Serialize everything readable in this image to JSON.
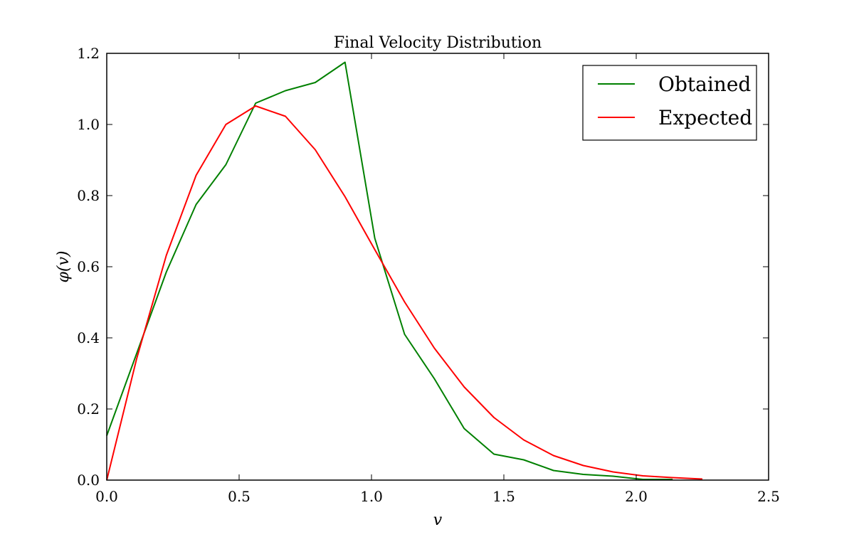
{
  "chart_data": {
    "type": "line",
    "title": "Final Velocity Distribution",
    "xlabel": "v",
    "ylabel": "φ(v)",
    "xlim": [
      0.0,
      2.5
    ],
    "ylim": [
      0.0,
      1.2
    ],
    "xticks": [
      0.0,
      0.5,
      1.0,
      1.5,
      2.0,
      2.5
    ],
    "xtick_labels": [
      "0.0",
      "0.5",
      "1.0",
      "1.5",
      "2.0",
      "2.5"
    ],
    "yticks": [
      0.0,
      0.2,
      0.4,
      0.6,
      0.8,
      1.0,
      1.2
    ],
    "ytick_labels": [
      "0.0",
      "0.2",
      "0.4",
      "0.6",
      "0.8",
      "1.0",
      "1.2"
    ],
    "grid": false,
    "legend_position": "top-right",
    "series": [
      {
        "name": "Obtained",
        "color": "#008000",
        "x": [
          0.0,
          0.1125,
          0.225,
          0.3375,
          0.45,
          0.5625,
          0.675,
          0.7875,
          0.9,
          1.0125,
          1.125,
          1.2375,
          1.35,
          1.4625,
          1.575,
          1.6875,
          1.8,
          1.9125,
          2.025,
          2.1375
        ],
        "y": [
          0.125,
          0.355,
          0.585,
          0.775,
          0.887,
          1.06,
          1.095,
          1.118,
          1.175,
          0.68,
          0.41,
          0.285,
          0.145,
          0.073,
          0.057,
          0.027,
          0.016,
          0.011,
          0.002,
          0.002
        ]
      },
      {
        "name": "Expected",
        "color": "#ff0000",
        "x": [
          0.0,
          0.1125,
          0.225,
          0.3375,
          0.45,
          0.5625,
          0.675,
          0.7875,
          0.9,
          1.0125,
          1.125,
          1.2375,
          1.35,
          1.4625,
          1.575,
          1.6875,
          1.8,
          1.9125,
          2.025,
          2.1375,
          2.25
        ],
        "y": [
          0.0,
          0.34,
          0.632,
          0.857,
          1.0,
          1.052,
          1.023,
          0.929,
          0.797,
          0.648,
          0.501,
          0.371,
          0.262,
          0.176,
          0.113,
          0.069,
          0.041,
          0.023,
          0.012,
          0.007,
          0.003
        ]
      }
    ]
  }
}
